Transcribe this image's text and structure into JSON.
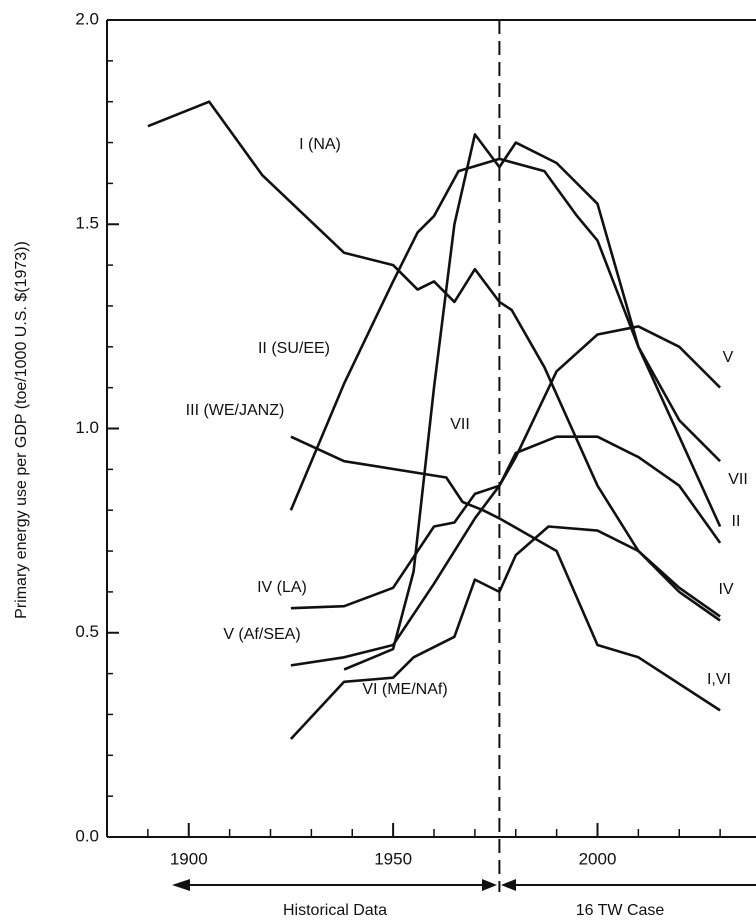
{
  "chart_data": {
    "type": "line",
    "y_axis_label": "Primary energy use per GDP (toe/1000 U.S. $(1973))",
    "xlim": [
      1880,
      2040
    ],
    "xticks": [
      1900,
      1950,
      2000
    ],
    "x_minor_ticks": [
      1890,
      1910,
      1920,
      1930,
      1940,
      1960,
      1970,
      1980,
      1990,
      2010,
      2020,
      2030
    ],
    "ylim": [
      0,
      2
    ],
    "yticks": [
      {
        "value": 0,
        "label": "0.0"
      },
      0.5,
      {
        "value": 1,
        "label": "1.0"
      },
      1.5,
      {
        "value": 2,
        "label": "2.0"
      }
    ],
    "y_minor_ticks": [
      0.1,
      0.2,
      0.3,
      0.4,
      0.6,
      0.7,
      0.8,
      0.9,
      1.1,
      1.2,
      1.3,
      1.4,
      1.6,
      1.7,
      1.8,
      1.9
    ],
    "divider_x": 1976,
    "period_labels": [
      "Historical Data",
      "16 TW Case"
    ],
    "series": [
      {
        "name": "I (NA)",
        "color": "#111",
        "x": [
          1890,
          1905,
          1918,
          1938,
          1950,
          1956,
          1960,
          1965,
          1970,
          1976,
          1979,
          1987,
          2000,
          2010,
          2020,
          2030
        ],
        "values": [
          1.74,
          1.8,
          1.62,
          1.43,
          1.4,
          1.34,
          1.36,
          1.31,
          1.39,
          1.31,
          1.29,
          1.15,
          0.86,
          0.7,
          0.6,
          0.53
        ]
      },
      {
        "name": "II (SU/EE)",
        "color": "#111",
        "x": [
          1925,
          1938,
          1950,
          1956,
          1960,
          1966,
          1976,
          1987,
          1995,
          2000,
          2010,
          2020,
          2030
        ],
        "values": [
          0.8,
          1.11,
          1.36,
          1.48,
          1.52,
          1.63,
          1.66,
          1.63,
          1.52,
          1.46,
          1.2,
          0.98,
          0.76
        ]
      },
      {
        "name": "III (WE/JANZ)",
        "color": "#111",
        "x": [
          1925,
          1938,
          1963,
          1967,
          1972,
          1976,
          1990,
          2000,
          2010,
          2030
        ],
        "values": [
          0.98,
          0.92,
          0.88,
          0.82,
          0.8,
          0.78,
          0.7,
          0.47,
          0.44,
          0.31
        ]
      },
      {
        "name": "IV (LA)",
        "color": "#111",
        "x": [
          1925,
          1938,
          1950,
          1960,
          1965,
          1970,
          1976,
          1980,
          1990,
          2000,
          2010,
          2020,
          2030
        ],
        "values": [
          0.56,
          0.565,
          0.61,
          0.76,
          0.77,
          0.84,
          0.86,
          0.94,
          0.98,
          0.98,
          0.93,
          0.86,
          0.72
        ]
      },
      {
        "name": "V (Af/SEA)",
        "color": "#111",
        "x": [
          1925,
          1938,
          1950,
          1960,
          1970,
          1976,
          1980,
          1990,
          2000,
          2010,
          2020,
          2030
        ],
        "values": [
          0.42,
          0.44,
          0.47,
          0.62,
          0.78,
          0.86,
          0.93,
          1.14,
          1.23,
          1.25,
          1.2,
          1.1
        ]
      },
      {
        "name": "VI (ME/NAf)",
        "color": "#111",
        "x": [
          1925,
          1938,
          1950,
          1955,
          1965,
          1970,
          1976,
          1980,
          1988,
          2000,
          2010,
          2020,
          2030
        ],
        "values": [
          0.24,
          0.38,
          0.39,
          0.44,
          0.49,
          0.63,
          0.6,
          0.69,
          0.76,
          0.75,
          0.7,
          0.61,
          0.54
        ]
      },
      {
        "name": "VII",
        "color": "#111",
        "x": [
          1938,
          1950,
          1955,
          1960,
          1965,
          1970,
          1976,
          1980,
          1990,
          2000,
          2010,
          2020,
          2030
        ],
        "values": [
          0.41,
          0.46,
          0.65,
          1.1,
          1.5,
          1.72,
          1.64,
          1.7,
          1.65,
          1.55,
          1.2,
          1.02,
          0.92
        ]
      }
    ],
    "annotations": [
      "V",
      "VII",
      "II",
      "IV",
      "I,VI"
    ]
  }
}
